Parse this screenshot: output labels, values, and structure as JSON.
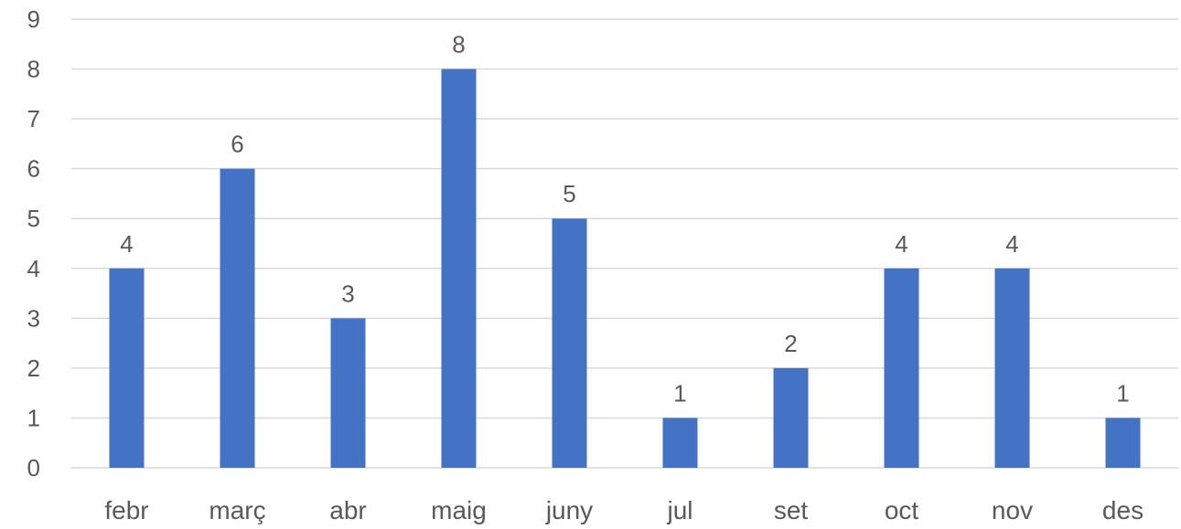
{
  "chart_data": {
    "type": "bar",
    "categories": [
      "febr",
      "març",
      "abr",
      "maig",
      "juny",
      "jul",
      "set",
      "oct",
      "nov",
      "des"
    ],
    "values": [
      4,
      6,
      3,
      8,
      5,
      1,
      2,
      4,
      4,
      1
    ],
    "ylim": [
      0,
      9
    ],
    "yticks": [
      "0",
      "1",
      "2",
      "3",
      "4",
      "5",
      "6",
      "7",
      "8",
      "9"
    ],
    "data_labels": [
      "4",
      "6",
      "3",
      "8",
      "5",
      "1",
      "2",
      "4",
      "4",
      "1"
    ],
    "grid": true,
    "legend": "none",
    "colors": {
      "bar": "#4472C4",
      "grid": "#D9D9D9",
      "text": "#595959"
    }
  }
}
